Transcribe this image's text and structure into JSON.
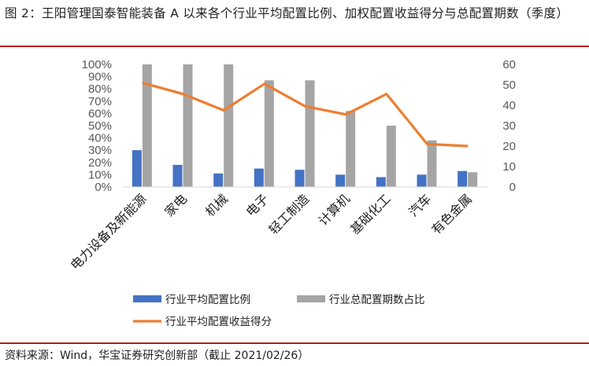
{
  "figure": {
    "title": "图 2：王阳管理国泰智能装备 A 以来各个行业平均配置比例、加权配置收益得分与总配置期数（季度）",
    "source": "资料来源：Wind，华宝证券研究创新部（截止 2021/02/26）"
  },
  "colors": {
    "blue": "#4472c4",
    "gray": "#a5a5a5",
    "orange": "#ed7d31",
    "rule": "#b31b1b"
  },
  "chart_data": {
    "type": "bar",
    "categories": [
      "电力设备及新能源",
      "家电",
      "机械",
      "电子",
      "轻工制造",
      "计算机",
      "基础化工",
      "汽车",
      "有色金属"
    ],
    "y_left": {
      "ylim": [
        0,
        100
      ],
      "ticks": [
        "0%",
        "10%",
        "20%",
        "30%",
        "40%",
        "50%",
        "60%",
        "70%",
        "80%",
        "90%",
        "100%"
      ]
    },
    "y_right": {
      "ylim": [
        0,
        60
      ],
      "ticks": [
        "0",
        "10",
        "20",
        "30",
        "40",
        "50",
        "60"
      ]
    },
    "series": [
      {
        "name": "行业平均配置比例",
        "type": "bar",
        "axis": "left",
        "values": [
          30,
          18,
          11,
          15,
          14,
          10,
          8,
          10,
          13
        ]
      },
      {
        "name": "行业总配置期数占比",
        "type": "bar",
        "axis": "left",
        "values": [
          100,
          100,
          100,
          87,
          87,
          62,
          50,
          38,
          12
        ]
      },
      {
        "name": "行业平均配置收益得分",
        "type": "line",
        "axis": "right",
        "values": [
          51,
          45.5,
          37.5,
          50.5,
          39.5,
          35.5,
          45.5,
          21,
          20
        ]
      }
    ],
    "legend": "bottom",
    "grid": false
  }
}
